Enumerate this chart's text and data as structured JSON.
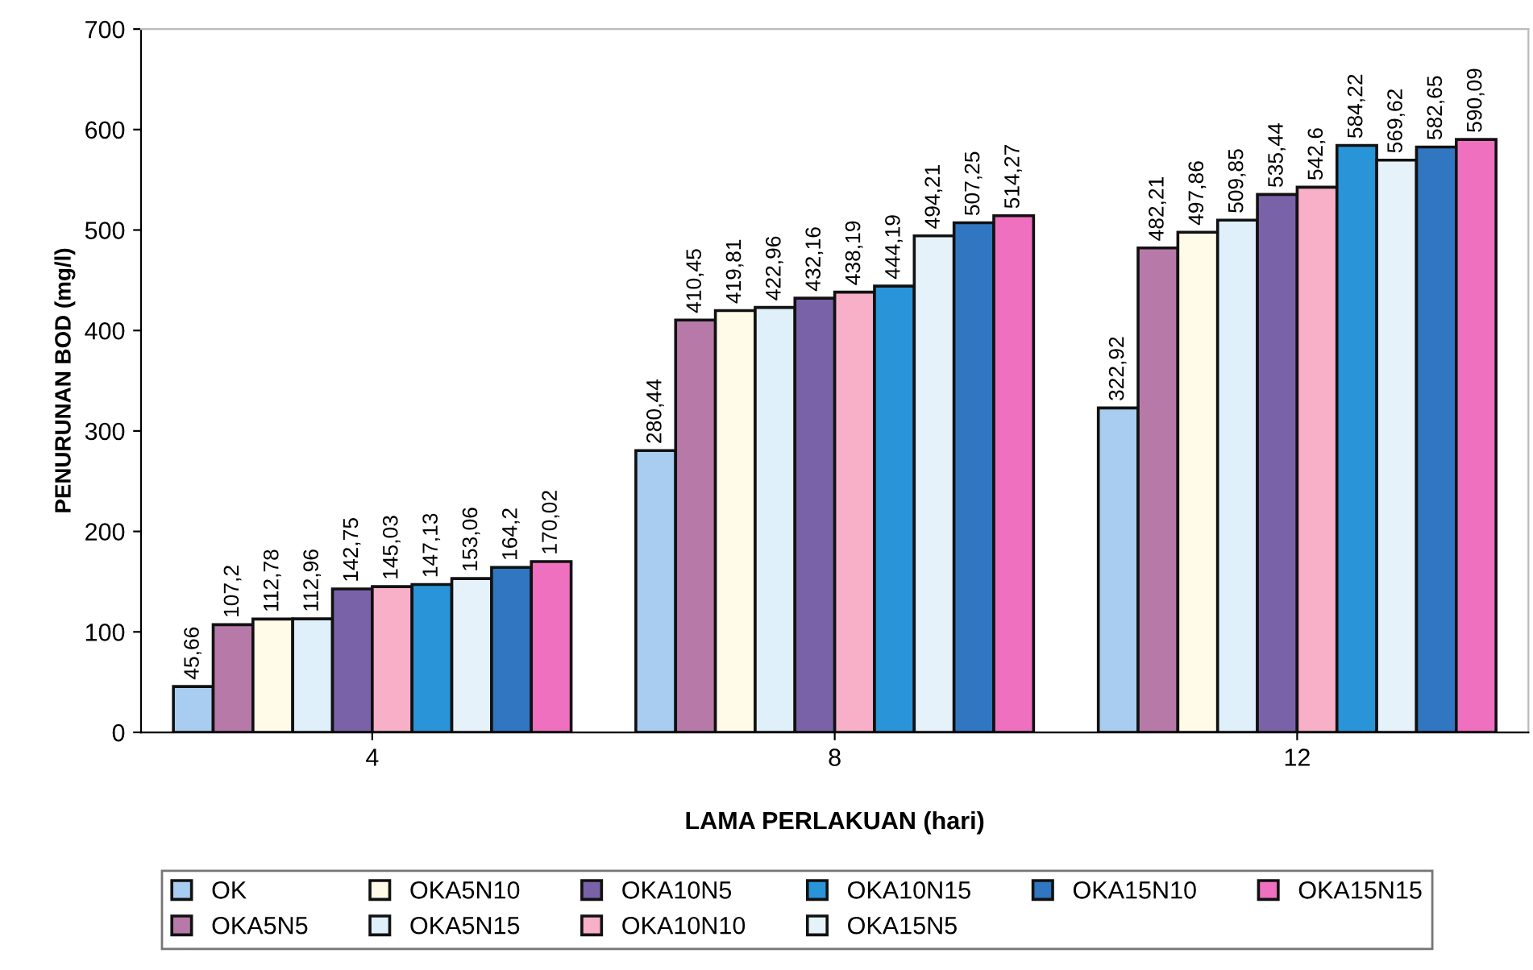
{
  "chart_data": {
    "type": "bar",
    "xlabel": "LAMA PERLAKUAN (hari)",
    "ylabel": "PENURUNAN BOD (mg/l)",
    "categories": [
      "4",
      "8",
      "12"
    ],
    "ylim": [
      0,
      700
    ],
    "yticks": [
      0,
      100,
      200,
      300,
      400,
      500,
      600,
      700
    ],
    "grid": false,
    "legend": "bottom",
    "series": [
      {
        "name": "OK",
        "color": "#a8cdf0",
        "values": [
          45.66,
          280.44,
          322.92
        ],
        "value_labels": [
          "45,66",
          "280,44",
          "322,92"
        ]
      },
      {
        "name": "OKA5N5",
        "color": "#b77aa8",
        "values": [
          107.2,
          410.45,
          482.21
        ],
        "value_labels": [
          "107,2",
          "410,45",
          "482,21"
        ]
      },
      {
        "name": "OKA5N10",
        "color": "#fffbe8",
        "values": [
          112.78,
          419.81,
          497.86
        ],
        "value_labels": [
          "112,78",
          "419,81",
          "497,86"
        ]
      },
      {
        "name": "OKA5N15",
        "color": "#dff0fa",
        "values": [
          112.96,
          422.96,
          509.85
        ],
        "value_labels": [
          "112,96",
          "422,96",
          "509,85"
        ]
      },
      {
        "name": "OKA10N5",
        "color": "#7a62a8",
        "values": [
          142.75,
          432.16,
          535.44
        ],
        "value_labels": [
          "142,75",
          "432,16",
          "535,44"
        ]
      },
      {
        "name": "OKA10N10",
        "color": "#f7b0c8",
        "values": [
          145.03,
          438.19,
          542.6
        ],
        "value_labels": [
          "145,03",
          "438,19",
          "542,6"
        ]
      },
      {
        "name": "OKA10N15",
        "color": "#2a94d8",
        "values": [
          147.13,
          444.19,
          584.22
        ],
        "value_labels": [
          "147,13",
          "444,19",
          "584,22"
        ]
      },
      {
        "name": "OKA15N5",
        "color": "#e6f2fa",
        "values": [
          153.06,
          494.21,
          569.62
        ],
        "value_labels": [
          "153,06",
          "494,21",
          "569,62"
        ]
      },
      {
        "name": "OKA15N10",
        "color": "#3176c0",
        "values": [
          164.2,
          507.25,
          582.65
        ],
        "value_labels": [
          "164,2",
          "507,25",
          "582,65"
        ]
      },
      {
        "name": "OKA15N15",
        "color": "#f070c0",
        "values": [
          170.02,
          514.27,
          590.09
        ],
        "value_labels": [
          "170,02",
          "514,27",
          "590,09"
        ]
      }
    ]
  }
}
